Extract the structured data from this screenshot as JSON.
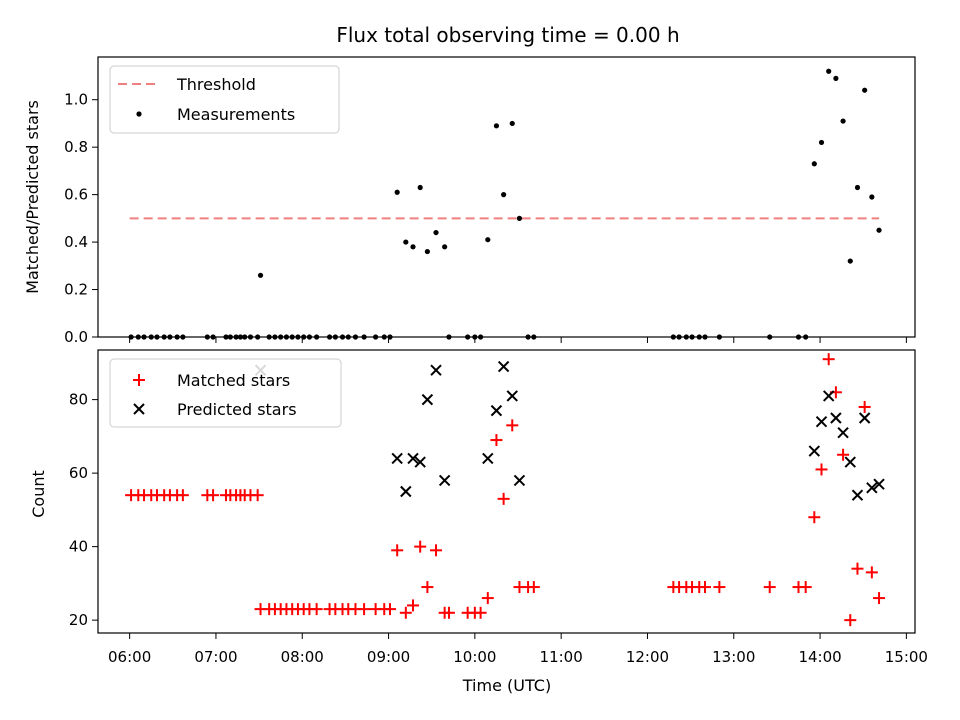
{
  "figure": {
    "title": "Flux total observing time = 0.00 h"
  },
  "x_axis": {
    "label": "Time (UTC)",
    "ticks": [
      {
        "hour": 6,
        "label": "06:00"
      },
      {
        "hour": 7,
        "label": "07:00"
      },
      {
        "hour": 8,
        "label": "08:00"
      },
      {
        "hour": 9,
        "label": "09:00"
      },
      {
        "hour": 10,
        "label": "10:00"
      },
      {
        "hour": 11,
        "label": "11:00"
      },
      {
        "hour": 12,
        "label": "12:00"
      },
      {
        "hour": 13,
        "label": "13:00"
      },
      {
        "hour": 14,
        "label": "14:00"
      },
      {
        "hour": 15,
        "label": "15:00"
      }
    ]
  },
  "chart_data": [
    {
      "type": "scatter",
      "ylabel": "Matched/Predicted stars",
      "xlim": [
        "05:38",
        "15:06"
      ],
      "ylim": [
        0,
        1.18
      ],
      "yticks": [
        0.0,
        0.2,
        0.4,
        0.6,
        0.8,
        1.0
      ],
      "ytick_labels": [
        "0.0",
        "0.2",
        "0.4",
        "0.6",
        "0.8",
        "1.0"
      ],
      "legend_position": "top-left",
      "threshold": {
        "name": "Threshold",
        "value": 0.5,
        "x_range": [
          "06:00",
          "14:41"
        ],
        "color": "#f08080",
        "style": "dashed"
      },
      "series": [
        {
          "name": "Measurements",
          "color": "#000000",
          "marker": "dot",
          "points": [
            [
              "06:01",
              0
            ],
            [
              "06:06",
              0
            ],
            [
              "06:10",
              0
            ],
            [
              "06:15",
              0
            ],
            [
              "06:19",
              0
            ],
            [
              "06:24",
              0
            ],
            [
              "06:28",
              0
            ],
            [
              "06:33",
              0
            ],
            [
              "06:37",
              0
            ],
            [
              "06:54",
              0
            ],
            [
              "06:58",
              0
            ],
            [
              "07:07",
              0
            ],
            [
              "07:10",
              0
            ],
            [
              "07:14",
              0
            ],
            [
              "07:17",
              0
            ],
            [
              "07:20",
              0
            ],
            [
              "07:24",
              0
            ],
            [
              "07:29",
              0
            ],
            [
              "07:31",
              0.26
            ],
            [
              "07:37",
              0
            ],
            [
              "07:41",
              0
            ],
            [
              "07:45",
              0
            ],
            [
              "07:49",
              0
            ],
            [
              "07:53",
              0
            ],
            [
              "07:57",
              0
            ],
            [
              "08:01",
              0
            ],
            [
              "08:05",
              0
            ],
            [
              "08:10",
              0
            ],
            [
              "08:19",
              0
            ],
            [
              "08:23",
              0
            ],
            [
              "08:28",
              0
            ],
            [
              "08:32",
              0
            ],
            [
              "08:37",
              0
            ],
            [
              "08:43",
              0
            ],
            [
              "08:51",
              0
            ],
            [
              "08:57",
              0
            ],
            [
              "09:01",
              0
            ],
            [
              "09:06",
              0.61
            ],
            [
              "09:12",
              0.4
            ],
            [
              "09:17",
              0.38
            ],
            [
              "09:22",
              0.63
            ],
            [
              "09:27",
              0.36
            ],
            [
              "09:33",
              0.44
            ],
            [
              "09:39",
              0.38
            ],
            [
              "09:42",
              0
            ],
            [
              "09:55",
              0
            ],
            [
              "10:00",
              0
            ],
            [
              "10:04",
              0
            ],
            [
              "10:09",
              0.41
            ],
            [
              "10:15",
              0.89
            ],
            [
              "10:20",
              0.6
            ],
            [
              "10:26",
              0.9
            ],
            [
              "10:31",
              0.5
            ],
            [
              "10:37",
              0
            ],
            [
              "10:41",
              0
            ],
            [
              "12:18",
              0
            ],
            [
              "12:22",
              0
            ],
            [
              "12:27",
              0
            ],
            [
              "12:31",
              0
            ],
            [
              "12:36",
              0
            ],
            [
              "12:40",
              0
            ],
            [
              "12:50",
              0
            ],
            [
              "13:25",
              0
            ],
            [
              "13:45",
              0
            ],
            [
              "13:50",
              0
            ],
            [
              "13:56",
              0.73
            ],
            [
              "14:01",
              0.82
            ],
            [
              "14:06",
              1.12
            ],
            [
              "14:11",
              1.09
            ],
            [
              "14:16",
              0.91
            ],
            [
              "14:21",
              0.32
            ],
            [
              "14:26",
              0.63
            ],
            [
              "14:31",
              1.04
            ],
            [
              "14:36",
              0.59
            ],
            [
              "14:41",
              0.45
            ]
          ]
        }
      ]
    },
    {
      "type": "scatter",
      "ylabel": "Count",
      "xlabel": "Time (UTC)",
      "xlim": [
        "05:38",
        "15:06"
      ],
      "ylim": [
        16.5,
        93.5
      ],
      "yticks": [
        20,
        40,
        60,
        80
      ],
      "ytick_labels": [
        "20",
        "40",
        "60",
        "80"
      ],
      "legend_position": "top-left",
      "series": [
        {
          "name": "Matched stars",
          "color": "#ff0000",
          "marker": "plus",
          "points": [
            [
              "06:01",
              54
            ],
            [
              "06:06",
              54
            ],
            [
              "06:10",
              54
            ],
            [
              "06:15",
              54
            ],
            [
              "06:19",
              54
            ],
            [
              "06:24",
              54
            ],
            [
              "06:28",
              54
            ],
            [
              "06:33",
              54
            ],
            [
              "06:37",
              54
            ],
            [
              "06:54",
              54
            ],
            [
              "06:58",
              54
            ],
            [
              "07:07",
              54
            ],
            [
              "07:10",
              54
            ],
            [
              "07:14",
              54
            ],
            [
              "07:17",
              54
            ],
            [
              "07:20",
              54
            ],
            [
              "07:24",
              54
            ],
            [
              "07:29",
              54
            ],
            [
              "07:31",
              23
            ],
            [
              "07:37",
              23
            ],
            [
              "07:41",
              23
            ],
            [
              "07:45",
              23
            ],
            [
              "07:49",
              23
            ],
            [
              "07:53",
              23
            ],
            [
              "07:57",
              23
            ],
            [
              "08:01",
              23
            ],
            [
              "08:05",
              23
            ],
            [
              "08:10",
              23
            ],
            [
              "08:19",
              23
            ],
            [
              "08:23",
              23
            ],
            [
              "08:28",
              23
            ],
            [
              "08:32",
              23
            ],
            [
              "08:37",
              23
            ],
            [
              "08:43",
              23
            ],
            [
              "08:51",
              23
            ],
            [
              "08:57",
              23
            ],
            [
              "09:01",
              23
            ],
            [
              "09:06",
              39
            ],
            [
              "09:12",
              22
            ],
            [
              "09:17",
              24
            ],
            [
              "09:22",
              40
            ],
            [
              "09:27",
              29
            ],
            [
              "09:33",
              39
            ],
            [
              "09:39",
              22
            ],
            [
              "09:42",
              22
            ],
            [
              "09:55",
              22
            ],
            [
              "10:00",
              22
            ],
            [
              "10:04",
              22
            ],
            [
              "10:09",
              26
            ],
            [
              "10:15",
              69
            ],
            [
              "10:20",
              53
            ],
            [
              "10:26",
              73
            ],
            [
              "10:31",
              29
            ],
            [
              "10:37",
              29
            ],
            [
              "10:41",
              29
            ],
            [
              "12:18",
              29
            ],
            [
              "12:22",
              29
            ],
            [
              "12:27",
              29
            ],
            [
              "12:31",
              29
            ],
            [
              "12:36",
              29
            ],
            [
              "12:40",
              29
            ],
            [
              "12:50",
              29
            ],
            [
              "13:25",
              29
            ],
            [
              "13:45",
              29
            ],
            [
              "13:50",
              29
            ],
            [
              "13:56",
              48
            ],
            [
              "14:01",
              61
            ],
            [
              "14:06",
              91
            ],
            [
              "14:11",
              82
            ],
            [
              "14:16",
              65
            ],
            [
              "14:21",
              20
            ],
            [
              "14:26",
              34
            ],
            [
              "14:31",
              78
            ],
            [
              "14:36",
              33
            ],
            [
              "14:41",
              26
            ]
          ]
        },
        {
          "name": "Predicted stars",
          "color": "#000000",
          "marker": "x",
          "points": [
            [
              "07:31",
              88
            ],
            [
              "09:06",
              64
            ],
            [
              "09:12",
              55
            ],
            [
              "09:17",
              64
            ],
            [
              "09:22",
              63
            ],
            [
              "09:27",
              80
            ],
            [
              "09:33",
              88
            ],
            [
              "09:39",
              58
            ],
            [
              "10:09",
              64
            ],
            [
              "10:15",
              77
            ],
            [
              "10:20",
              89
            ],
            [
              "10:26",
              81
            ],
            [
              "10:31",
              58
            ],
            [
              "13:56",
              66
            ],
            [
              "14:01",
              74
            ],
            [
              "14:06",
              81
            ],
            [
              "14:11",
              75
            ],
            [
              "14:16",
              71
            ],
            [
              "14:21",
              63
            ],
            [
              "14:26",
              54
            ],
            [
              "14:31",
              75
            ],
            [
              "14:36",
              56
            ],
            [
              "14:41",
              57
            ]
          ]
        }
      ]
    }
  ]
}
